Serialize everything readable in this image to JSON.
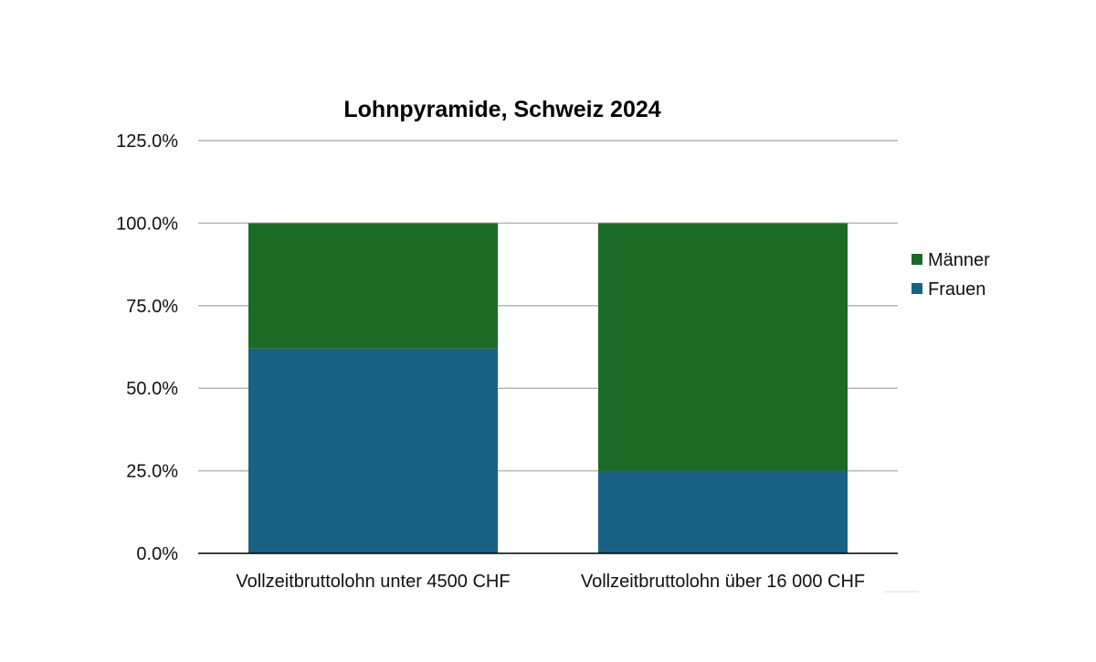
{
  "chart_data": {
    "type": "bar",
    "stacked": true,
    "title": "Lohnpyramide, Schweiz 2024",
    "xlabel": "",
    "ylabel": "",
    "ylim": [
      0,
      125
    ],
    "yticks": [
      0,
      25,
      50,
      75,
      100,
      125
    ],
    "ytick_labels": [
      "0.0%",
      "25.0%",
      "50.0%",
      "75.0%",
      "100.0%",
      "125.0%"
    ],
    "categories": [
      "Vollzeitbruttolohn unter 4500 CHF",
      "Vollzeitbruttolohn über 16 000 CHF"
    ],
    "series": [
      {
        "name": "Frauen",
        "values": [
          62,
          25
        ],
        "color": "#196184"
      },
      {
        "name": "Männer",
        "values": [
          38,
          75
        ],
        "color": "#1b6b27"
      }
    ],
    "grid": true,
    "legend": "right",
    "legend_order": [
      "Männer",
      "Frauen"
    ]
  }
}
